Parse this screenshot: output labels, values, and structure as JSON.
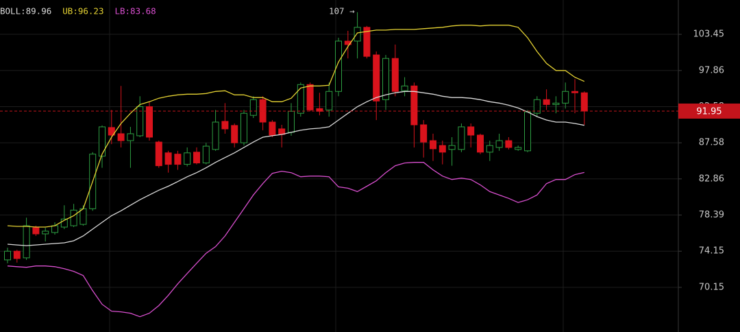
{
  "chart_data": {
    "type": "candlestick",
    "log_scale": true,
    "grid": true,
    "ylim": [
      65.5,
      109.05
    ],
    "yticks": [
      103.45,
      97.86,
      92.58,
      87.58,
      82.86,
      78.39,
      74.15,
      70.15
    ],
    "up_color": "#2ea043",
    "down_color": "#d9131c",
    "annotation": "107 →",
    "last_price": 91.95,
    "last_price_color": "#c4141c",
    "candles": {
      "open": [
        73.17,
        74.15,
        73.4,
        76.87,
        76.15,
        76.31,
        76.95,
        77.11,
        77.27,
        79.15,
        85.8,
        89.66,
        88.81,
        87.87,
        88.53,
        92.58,
        87.68,
        86.24,
        86.07,
        84.73,
        86.33,
        84.91,
        86.69,
        90.51,
        89.94,
        87.58,
        91.35,
        93.58,
        90.41,
        89.47,
        89.0,
        91.64,
        95.77,
        92.3,
        92.11,
        94.77,
        102.38,
        102.38,
        104.57,
        100.23,
        93.58,
        99.69,
        94.87,
        95.57,
        90.03,
        87.87,
        87.22,
        86.69,
        86.69,
        89.75,
        88.62,
        86.33,
        86.96,
        87.87,
        86.69,
        86.51,
        91.64,
        93.58,
        92.88,
        93.08,
        94.77,
        94.57
      ],
      "high": [
        74.55,
        74.31,
        78.07,
        77.11,
        76.87,
        77.51,
        79.57,
        79.74,
        79.57,
        86.33,
        89.94,
        92.11,
        95.57,
        89.75,
        94.07,
        93.28,
        87.87,
        86.51,
        86.51,
        86.96,
        86.96,
        87.58,
        92.11,
        93.08,
        90.22,
        92.11,
        94.07,
        94.07,
        90.69,
        90.03,
        93.08,
        96.07,
        96.07,
        94.57,
        96.07,
        102.91,
        104.01,
        107.03,
        104.79,
        100.76,
        100.23,
        101.84,
        96.86,
        96.07,
        90.69,
        88.81,
        87.87,
        88.34,
        90.22,
        90.22,
        88.81,
        87.87,
        88.81,
        88.34,
        87.22,
        92.11,
        94.07,
        95.07,
        94.07,
        96.07,
        96.57,
        94.77
      ],
      "low": [
        72.79,
        72.87,
        73.17,
        75.91,
        75.27,
        76.07,
        76.71,
        76.95,
        77.11,
        78.9,
        84.28,
        87.4,
        86.96,
        84.28,
        88.34,
        87.87,
        84.28,
        83.66,
        84.02,
        84.46,
        84.73,
        84.73,
        86.51,
        88.81,
        86.96,
        87.22,
        90.98,
        89.28,
        88.34,
        86.96,
        88.53,
        91.17,
        91.92,
        91.35,
        91.17,
        94.07,
        99.69,
        99.69,
        99.69,
        90.69,
        92.11,
        94.07,
        94.07,
        86.96,
        85.62,
        85.17,
        84.73,
        84.55,
        86.33,
        86.96,
        86.07,
        85.17,
        86.51,
        86.69,
        86.51,
        86.33,
        91.17,
        92.11,
        91.64,
        92.3,
        91.64,
        90.03
      ],
      "close": [
        74.15,
        73.32,
        77.11,
        76.15,
        76.47,
        77.11,
        77.91,
        78.98,
        79.15,
        86.07,
        89.75,
        88.62,
        87.87,
        88.81,
        92.58,
        88.34,
        84.55,
        84.73,
        84.73,
        86.24,
        84.91,
        87.13,
        90.41,
        89.47,
        87.58,
        91.64,
        93.58,
        90.41,
        88.62,
        88.71,
        91.92,
        95.77,
        92.11,
        91.92,
        94.77,
        102.38,
        101.84,
        104.57,
        100.01,
        93.38,
        99.69,
        94.77,
        95.57,
        90.03,
        87.68,
        86.78,
        86.33,
        87.22,
        89.75,
        88.62,
        86.33,
        87.22,
        87.87,
        86.96,
        86.96,
        91.83,
        93.58,
        92.88,
        93.08,
        94.77,
        94.57,
        91.95
      ]
    },
    "series": [
      {
        "label": "BOLL:89.96",
        "color": "#dcdcdc",
        "values": [
          74.95,
          74.87,
          74.79,
          74.87,
          74.95,
          75.03,
          75.11,
          75.35,
          75.91,
          76.71,
          77.51,
          78.31,
          78.9,
          79.57,
          80.25,
          80.84,
          81.43,
          81.93,
          82.52,
          83.13,
          83.66,
          84.28,
          84.99,
          85.62,
          86.24,
          86.96,
          87.68,
          88.34,
          88.53,
          88.71,
          89.0,
          89.28,
          89.47,
          89.56,
          89.75,
          90.69,
          91.64,
          92.58,
          93.28,
          93.88,
          94.27,
          94.57,
          94.77,
          94.77,
          94.57,
          94.37,
          94.07,
          93.88,
          93.88,
          93.78,
          93.58,
          93.28,
          93.08,
          92.78,
          92.39,
          91.83,
          91.17,
          90.69,
          90.41,
          90.41,
          90.22,
          89.96
        ]
      },
      {
        "label": "UB:96.23",
        "color": "#e6d333",
        "values": [
          77.11,
          77.03,
          77.03,
          76.95,
          76.95,
          77.11,
          77.75,
          78.31,
          79.15,
          82.52,
          86.07,
          88.34,
          90.22,
          91.64,
          92.88,
          93.28,
          93.78,
          94.07,
          94.27,
          94.37,
          94.37,
          94.47,
          94.77,
          94.87,
          94.27,
          94.27,
          93.88,
          93.88,
          93.28,
          93.28,
          93.78,
          95.27,
          95.57,
          95.57,
          95.67,
          99.15,
          101.52,
          103.67,
          103.9,
          104.12,
          104.12,
          104.23,
          104.23,
          104.23,
          104.35,
          104.46,
          104.57,
          104.79,
          104.91,
          104.91,
          104.79,
          104.91,
          104.91,
          104.91,
          104.57,
          102.91,
          100.76,
          98.94,
          97.86,
          97.86,
          96.86,
          96.23
        ]
      },
      {
        "label": "LB:83.68",
        "color": "#d94fcf",
        "values": [
          72.49,
          72.41,
          72.34,
          72.49,
          72.49,
          72.41,
          72.19,
          71.89,
          71.43,
          69.79,
          68.35,
          67.63,
          67.56,
          67.42,
          67.06,
          67.42,
          68.21,
          69.29,
          70.53,
          71.66,
          72.79,
          73.92,
          74.68,
          75.91,
          77.51,
          79.15,
          80.84,
          82.27,
          83.57,
          83.84,
          83.66,
          83.13,
          83.22,
          83.22,
          83.13,
          81.85,
          81.68,
          81.26,
          81.93,
          82.61,
          83.66,
          84.55,
          84.91,
          84.99,
          84.99,
          84.02,
          83.22,
          82.78,
          82.95,
          82.78,
          82.1,
          81.26,
          80.84,
          80.42,
          79.91,
          80.25,
          80.84,
          82.27,
          82.78,
          82.78,
          83.4,
          83.68
        ]
      }
    ]
  }
}
